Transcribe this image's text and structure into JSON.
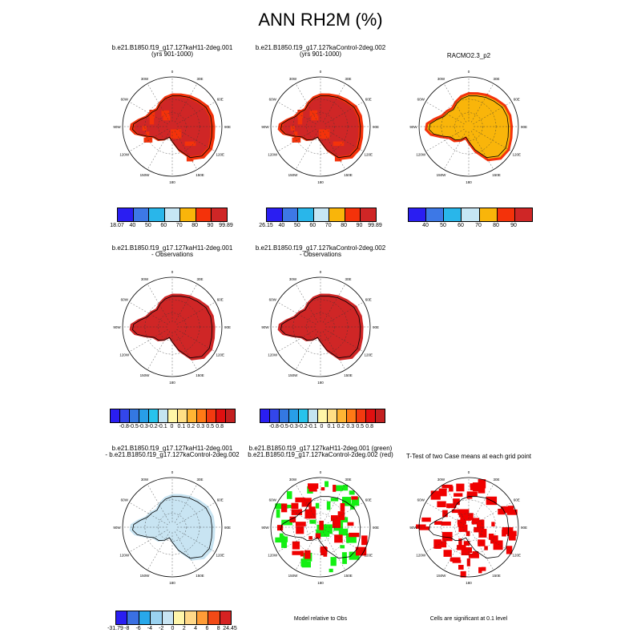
{
  "title": "ANN RH2M (%)",
  "lon_labels": [
    "0",
    "30E",
    "60E",
    "90E",
    "120E",
    "150E",
    "180",
    "150W",
    "120W",
    "90W",
    "60W",
    "30W"
  ],
  "palette_abs": [
    "#2a1ef2",
    "#3d78e6",
    "#29b6ea",
    "#c6e6f4",
    "#f9b50a",
    "#f4320a",
    "#cf2626"
  ],
  "palette_diff": [
    "#2a1ef2",
    "#3346ea",
    "#3478e2",
    "#289ee8",
    "#28c3ec",
    "#c4e4f2",
    "#fff6a8",
    "#ffdf86",
    "#ffb534",
    "#ff7a16",
    "#f23a10",
    "#e01010",
    "#c42020"
  ],
  "palette_diff2": [
    "#2a1ef2",
    "#3a70e2",
    "#28a8ea",
    "#9ad2f0",
    "#c8e4f2",
    "#fff6aa",
    "#ffd888",
    "#ff9c36",
    "#f24a16",
    "#d62222"
  ],
  "panels": [
    {
      "id": "p1",
      "title1": "b.e21.B1850.f19_g17.127kaH11-2deg.001",
      "title2": "(yrs 901-1000)",
      "palette": "abs",
      "field": "high",
      "labels": [
        "18.07",
        "40",
        "50",
        "60",
        "70",
        "80",
        "90",
        "99.89"
      ]
    },
    {
      "id": "p2",
      "title1": "b.e21.B1850.f19_g17.127kaControl-2deg.002",
      "title2": "(yrs 901-1000)",
      "palette": "abs",
      "field": "high",
      "labels": [
        "26.15",
        "40",
        "50",
        "60",
        "70",
        "80",
        "90",
        "99.89"
      ]
    },
    {
      "id": "p3",
      "title1": "RACMO2.3_p2",
      "title2": "",
      "palette": "abs",
      "field": "racmo",
      "labels": [
        "40",
        "50",
        "60",
        "70",
        "80",
        "90"
      ]
    },
    {
      "id": "p4",
      "title1": "b.e21.B1850.f19_g17.127kaH11-2deg.001",
      "title2": "- Observations",
      "palette": "diff",
      "field": "full",
      "labels": [
        "-0.8",
        "-0.5",
        "-0.3",
        "-0.2",
        "-0.1",
        "0",
        "0.1",
        "0.2",
        "0.3",
        "0.5",
        "0.8"
      ]
    },
    {
      "id": "p5",
      "title1": "b.e21.B1850.f19_g17.127kaControl-2deg.002",
      "title2": "- Observations",
      "palette": "diff",
      "field": "full",
      "labels": [
        "-0.8",
        "-0.5",
        "-0.3",
        "-0.2",
        "-0.1",
        "0",
        "0.1",
        "0.2",
        "0.3",
        "0.5",
        "0.8"
      ]
    },
    {
      "id": "p6",
      "title1": "b.e21.B1850.f19_g17.127kaH11-2deg.001",
      "title2": "- b.e21.B1850.f19_g17.127kaControl-2deg.002",
      "palette": "diff2",
      "field": "diff",
      "labels": [
        "-31.79",
        "-8",
        "-6",
        "-4",
        "-2",
        "0",
        "2",
        "4",
        "6",
        "8",
        "24.45"
      ]
    },
    {
      "id": "p7",
      "title1": "b.e21.B1850.f19_g17.127kaH11-2deg.001 (green)",
      "title2": "b.e21.B1850.f19_g17.127kaControl-2deg.002 (red)",
      "palette": "none",
      "field": "greenred",
      "labels": []
    },
    {
      "id": "p8",
      "title1": "T-Test of two Case means at each grid point",
      "title2": "",
      "palette": "none",
      "field": "ttest",
      "labels": []
    }
  ],
  "footnotes": {
    "p7": "Model relative to Obs",
    "p8": "Cells are significant at 0.1 level"
  }
}
